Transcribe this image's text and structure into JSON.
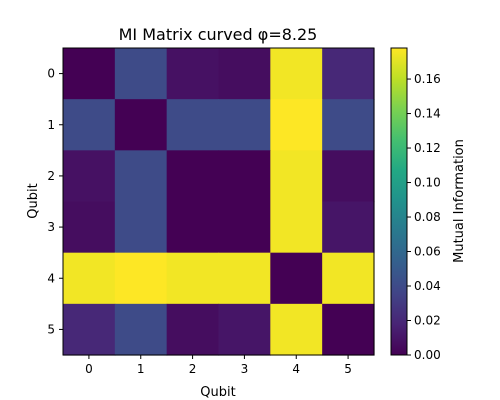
{
  "chart_data": {
    "type": "heatmap",
    "title": "MI Matrix curved φ=8.25",
    "xlabel": "Qubit",
    "ylabel": "Qubit",
    "x_ticks": [
      "0",
      "1",
      "2",
      "3",
      "4",
      "5"
    ],
    "y_ticks": [
      "0",
      "1",
      "2",
      "3",
      "4",
      "5"
    ],
    "colormap": "viridis",
    "values": [
      [
        0.0,
        0.04,
        0.008,
        0.006,
        0.175,
        0.02
      ],
      [
        0.04,
        0.0,
        0.04,
        0.04,
        0.178,
        0.04
      ],
      [
        0.008,
        0.04,
        0.0,
        0.0,
        0.175,
        0.006
      ],
      [
        0.006,
        0.04,
        0.0,
        0.0,
        0.175,
        0.01
      ],
      [
        0.175,
        0.178,
        0.175,
        0.175,
        0.0,
        0.175
      ],
      [
        0.02,
        0.04,
        0.006,
        0.01,
        0.175,
        0.0
      ]
    ],
    "colorbar": {
      "label": "Mutual Information",
      "range": [
        0,
        0.178
      ],
      "ticks": [
        "0.00",
        "0.02",
        "0.04",
        "0.06",
        "0.08",
        "0.10",
        "0.12",
        "0.14",
        "0.16"
      ]
    }
  }
}
